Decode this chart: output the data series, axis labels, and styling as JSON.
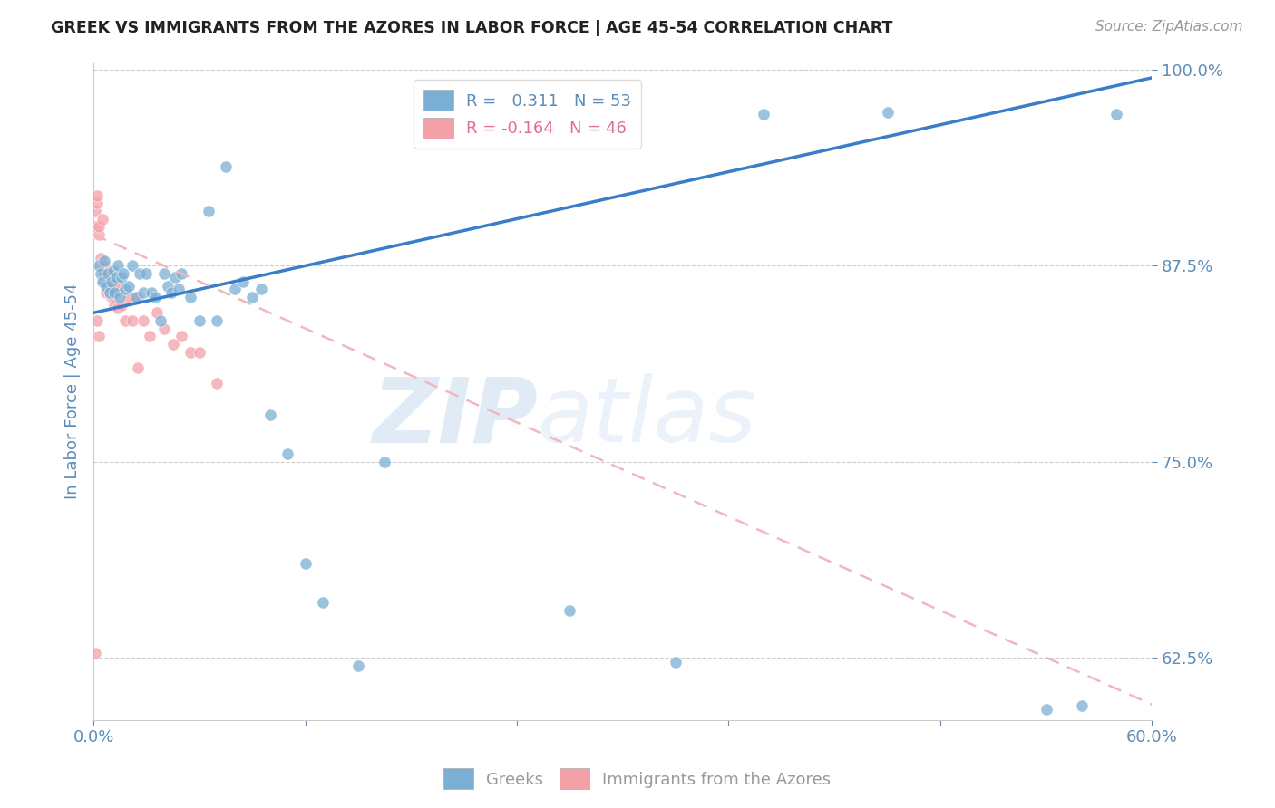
{
  "title": "GREEK VS IMMIGRANTS FROM THE AZORES IN LABOR FORCE | AGE 45-54 CORRELATION CHART",
  "source": "Source: ZipAtlas.com",
  "ylabel": "In Labor Force | Age 45-54",
  "watermark_zip": "ZIP",
  "watermark_atlas": "atlas",
  "xlim": [
    0.0,
    0.6
  ],
  "ylim": [
    0.585,
    1.005
  ],
  "yticks": [
    0.625,
    0.75,
    0.875,
    1.0
  ],
  "ytick_labels": [
    "62.5%",
    "75.0%",
    "87.5%",
    "100.0%"
  ],
  "xticks": [
    0.0,
    0.12,
    0.24,
    0.36,
    0.48,
    0.6
  ],
  "xtick_labels": [
    "0.0%",
    "",
    "",
    "",
    "",
    "60.0%"
  ],
  "greek_R": 0.311,
  "greek_N": 53,
  "azores_R": -0.164,
  "azores_N": 46,
  "blue_color": "#7BAFD4",
  "pink_color": "#F4A0A8",
  "trend_blue": "#3A7DC9",
  "trend_pink": "#F0B8BC",
  "axis_color": "#5B8DB8",
  "grid_color": "#CCCCCC",
  "background": "#FFFFFF",
  "greek_trend_x": [
    0.0,
    0.6
  ],
  "greek_trend_y": [
    0.845,
    0.995
  ],
  "azores_trend_x": [
    0.0,
    0.6
  ],
  "azores_trend_y": [
    0.895,
    0.595
  ],
  "greek_x": [
    0.003,
    0.004,
    0.005,
    0.006,
    0.007,
    0.008,
    0.009,
    0.01,
    0.011,
    0.012,
    0.013,
    0.014,
    0.015,
    0.016,
    0.017,
    0.018,
    0.02,
    0.022,
    0.024,
    0.026,
    0.028,
    0.03,
    0.033,
    0.035,
    0.038,
    0.04,
    0.042,
    0.044,
    0.046,
    0.048,
    0.05,
    0.055,
    0.06,
    0.065,
    0.07,
    0.075,
    0.08,
    0.085,
    0.09,
    0.095,
    0.1,
    0.11,
    0.12,
    0.13,
    0.15,
    0.165,
    0.27,
    0.33,
    0.38,
    0.45,
    0.54,
    0.56,
    0.58
  ],
  "greek_y": [
    0.875,
    0.87,
    0.865,
    0.878,
    0.862,
    0.87,
    0.858,
    0.865,
    0.872,
    0.858,
    0.868,
    0.875,
    0.855,
    0.868,
    0.87,
    0.86,
    0.862,
    0.875,
    0.855,
    0.87,
    0.858,
    0.87,
    0.858,
    0.855,
    0.84,
    0.87,
    0.862,
    0.858,
    0.868,
    0.86,
    0.87,
    0.855,
    0.84,
    0.91,
    0.84,
    0.938,
    0.86,
    0.865,
    0.855,
    0.86,
    0.78,
    0.755,
    0.685,
    0.66,
    0.62,
    0.75,
    0.655,
    0.622,
    0.972,
    0.973,
    0.592,
    0.594,
    0.972
  ],
  "azores_x": [
    0.001,
    0.001,
    0.002,
    0.002,
    0.003,
    0.003,
    0.004,
    0.004,
    0.005,
    0.005,
    0.006,
    0.006,
    0.006,
    0.007,
    0.007,
    0.007,
    0.008,
    0.008,
    0.009,
    0.009,
    0.01,
    0.01,
    0.011,
    0.011,
    0.012,
    0.013,
    0.014,
    0.015,
    0.016,
    0.018,
    0.02,
    0.022,
    0.025,
    0.028,
    0.032,
    0.036,
    0.04,
    0.045,
    0.05,
    0.055,
    0.06,
    0.07,
    0.025,
    0.003,
    0.002,
    0.001
  ],
  "azores_y": [
    0.9,
    0.91,
    0.915,
    0.92,
    0.895,
    0.9,
    0.88,
    0.875,
    0.905,
    0.875,
    0.87,
    0.865,
    0.875,
    0.862,
    0.868,
    0.858,
    0.865,
    0.87,
    0.858,
    0.862,
    0.855,
    0.86,
    0.855,
    0.862,
    0.85,
    0.858,
    0.848,
    0.862,
    0.85,
    0.84,
    0.855,
    0.84,
    0.855,
    0.84,
    0.83,
    0.845,
    0.835,
    0.825,
    0.83,
    0.82,
    0.82,
    0.8,
    0.81,
    0.83,
    0.84,
    0.628
  ]
}
